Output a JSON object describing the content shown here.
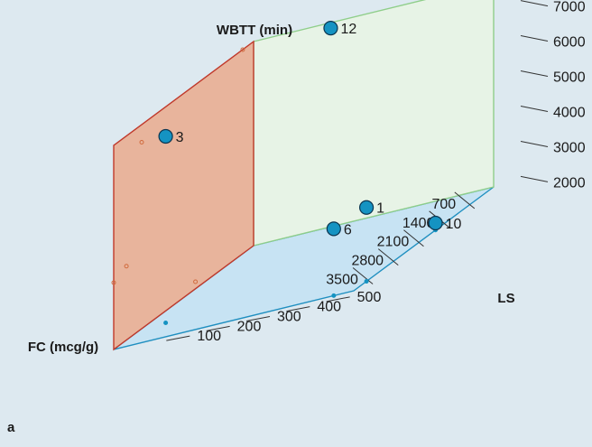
{
  "panel_label": "a",
  "colors": {
    "background": "#dde9f0",
    "wall_left_fill": "#e8b49c",
    "wall_left_edge": "#c0392b",
    "wall_back_fill": "#e7f3e6",
    "wall_back_edge": "#8fce8a",
    "floor_fill": "#c7e3f3",
    "floor_edge": "#1f8fc0",
    "point_fill": "#1593c2",
    "point_edge": "#0b3550",
    "projection_wall": "#d06a3d",
    "projection_floor": "#1593c2"
  },
  "chart_data": {
    "type": "scatter",
    "projection": "3d",
    "title": "",
    "axes": {
      "fc": {
        "label": "FC (mcg/g)",
        "ticks": [
          "700",
          "1400",
          "2100",
          "2800",
          "3500"
        ],
        "range": [
          0,
          3850
        ]
      },
      "ls": {
        "label": "LS",
        "ticks": [
          "100",
          "200",
          "300",
          "400",
          "500"
        ],
        "range": [
          0,
          600
        ]
      },
      "wbtt": {
        "label": "WBTT (min)",
        "ticks": [
          "2000",
          "3000",
          "4000",
          "5000",
          "6000",
          "7000"
        ],
        "range": [
          1600,
          7400
        ]
      }
    },
    "points": [
      {
        "label": "12",
        "fc": 300,
        "ls": 220,
        "wbtt": 7400
      },
      {
        "label": "3",
        "fc": 3080,
        "ls": 60,
        "wbtt": 6900
      },
      {
        "label": "1",
        "fc": 3500,
        "ls": 600,
        "wbtt": 3700
      },
      {
        "label": "6",
        "fc": 3850,
        "ls": 550,
        "wbtt": 3500
      },
      {
        "label": "10",
        "fc": 1600,
        "ls": 600,
        "wbtt": 1800
      }
    ]
  }
}
